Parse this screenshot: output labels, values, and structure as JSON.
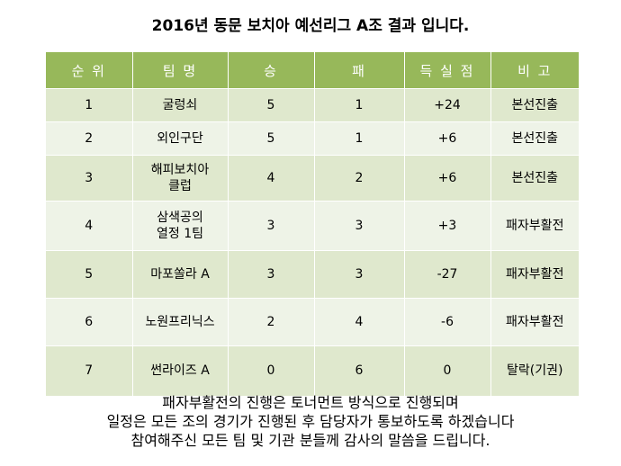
{
  "title": "2016년 동문 보치아 예선리그 A조 결과 입니다.",
  "table": {
    "headers": [
      "순 위",
      "팀 명",
      "승",
      "패",
      "득 실 점",
      "비 고"
    ],
    "rows": [
      [
        "1",
        "굴렁쇠",
        "5",
        "1",
        "+24",
        "본선진출"
      ],
      [
        "2",
        "외인구단",
        "5",
        "1",
        "+6",
        "본선진출"
      ],
      [
        "3",
        "해피보치아\n클럽",
        "4",
        "2",
        "+6",
        "본선진출"
      ],
      [
        "4",
        "삼색공의\n열정 1팀",
        "3",
        "3",
        "+3",
        "패자부활전"
      ],
      [
        "5",
        "마포쏠라 A",
        "3",
        "3",
        "-27",
        "패자부활전"
      ],
      [
        "6",
        "노원프리닉스",
        "2",
        "4",
        "-6",
        "패자부활전"
      ],
      [
        "7",
        "썬라이즈 A",
        "0",
        "6",
        "0",
        "탈락(기권)"
      ]
    ]
  },
  "notes": [
    "패자부활전의 진행은 토너먼트 방식으로 진행되며",
    "일정은 모든 조의 경기가 진행된 후 담당자가 통보하도록 하겠습니다",
    "참여해주신 모든 팀 및 기관 분들께 감사의 말씀을 드립니다."
  ],
  "colors": {
    "header_bg": "#97b85a",
    "row_odd": "#dfe8cd",
    "row_even": "#eef3e7"
  }
}
